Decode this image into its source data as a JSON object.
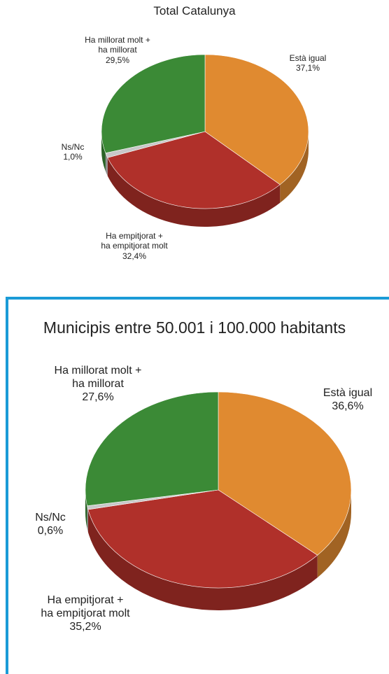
{
  "chart_data": [
    {
      "type": "pie",
      "title": "Total Catalunya",
      "categories": [
        "Està igual",
        "Ha empitjorat + ha empitjorat molt",
        "Ns/Nc",
        "Ha millorat molt + ha millorat"
      ],
      "values": [
        37.1,
        32.4,
        1.0,
        29.5
      ],
      "value_labels": [
        "37,1%",
        "32,4%",
        "1,0%",
        "29,5%"
      ],
      "colors": [
        "#e08a30",
        "#b0302a",
        "#c8c8c8",
        "#3b8a36"
      ]
    },
    {
      "type": "pie",
      "title": "Municipis entre 50.001 i 100.000 habitants",
      "categories": [
        "Està igual",
        "Ha empitjorat + ha empitjorat molt",
        "Ns/Nc",
        "Ha millorat molt + ha millorat"
      ],
      "values": [
        36.6,
        35.2,
        0.6,
        27.6
      ],
      "value_labels": [
        "36,6%",
        "35,2%",
        "0,6%",
        "27,6%"
      ],
      "colors": [
        "#e08a30",
        "#b0302a",
        "#c8c8c8",
        "#3b8a36"
      ]
    }
  ]
}
